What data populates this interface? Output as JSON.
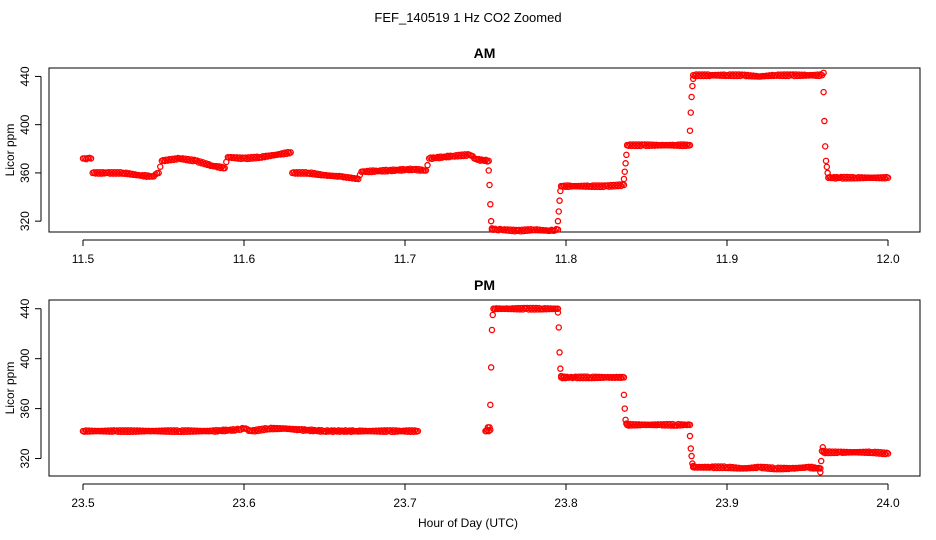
{
  "figure": {
    "title": "FEF_140519  1 Hz CO2 Zoomed",
    "xlabel": "Hour of Day (UTC)"
  },
  "colors": {
    "points": "#ff0000",
    "axes": "#000000",
    "background": "#ffffff"
  },
  "chart_data": [
    {
      "type": "scatter",
      "title": "AM",
      "xlabel": "",
      "ylabel": "Licor ppm",
      "xlim": [
        11.5,
        12.0
      ],
      "ylim": [
        311,
        447
      ],
      "xticks": [
        11.5,
        11.6,
        11.7,
        11.8,
        11.9,
        12.0
      ],
      "xtick_labels": [
        "11.5",
        "11.6",
        "11.7",
        "11.8",
        "11.9",
        "12.0"
      ],
      "yticks": [
        320,
        360,
        400,
        440
      ],
      "ytick_labels": [
        "320",
        "360",
        "400",
        "440"
      ],
      "grid": false,
      "series": [
        {
          "name": "CO2",
          "marker": "open-circle",
          "segments": [
            {
              "x": [
                11.5,
                11.505,
                11.506,
                11.515,
                11.525,
                11.535,
                11.543,
                11.547,
                11.549,
                11.56,
                11.57,
                11.58,
                11.588,
                11.59,
                11.6,
                11.61,
                11.62,
                11.629,
                11.63,
                11.64,
                11.65,
                11.66,
                11.671,
                11.673,
                11.69,
                11.705,
                11.713,
                11.715,
                11.73,
                11.74,
                11.745,
                11.752
              ],
              "y": [
                372,
                372,
                360,
                360,
                360,
                358,
                357,
                360,
                370,
                372,
                370,
                366,
                364,
                373,
                372,
                373,
                375,
                377,
                360,
                360,
                358,
                357,
                355,
                361,
                362,
                363,
                362,
                372,
                374,
                375,
                371,
                370
              ]
            },
            {
              "x": [
                11.752,
                11.7525,
                11.753,
                11.7535,
                11.754
              ],
              "y": [
                362,
                350,
                334,
                320,
                314
              ]
            },
            {
              "x": [
                11.754,
                11.76,
                11.77,
                11.78,
                11.79,
                11.795
              ],
              "y": [
                313,
                313,
                312,
                313,
                312,
                313
              ]
            },
            {
              "x": [
                11.795,
                11.7955,
                11.796,
                11.7965,
                11.797
              ],
              "y": [
                320,
                328,
                337,
                345,
                349
              ]
            },
            {
              "x": [
                11.797,
                11.805,
                11.815,
                11.825,
                11.836
              ],
              "y": [
                349,
                349,
                349,
                349,
                350
              ]
            },
            {
              "x": [
                11.836,
                11.8365,
                11.837,
                11.8375,
                11.838
              ],
              "y": [
                355,
                361,
                368,
                375,
                383
              ]
            },
            {
              "x": [
                11.838,
                11.848,
                11.858,
                11.868,
                11.877
              ],
              "y": [
                383,
                383,
                383,
                383,
                383
              ]
            },
            {
              "x": [
                11.877,
                11.8775,
                11.878,
                11.8785,
                11.879
              ],
              "y": [
                395,
                410,
                423,
                432,
                438
              ]
            },
            {
              "x": [
                11.879,
                11.89,
                11.9,
                11.91,
                11.92,
                11.93,
                11.94,
                11.95,
                11.959,
                11.96
              ],
              "y": [
                441,
                441,
                441,
                441,
                440,
                441,
                441,
                441,
                441,
                443
              ]
            },
            {
              "x": [
                11.96,
                11.9605,
                11.961,
                11.9615,
                11.962,
                11.9625,
                11.963
              ],
              "y": [
                427,
                403,
                382,
                370,
                365,
                360,
                356
              ]
            },
            {
              "x": [
                11.963,
                11.97,
                11.98,
                11.99,
                12.0
              ],
              "y": [
                356,
                356,
                356,
                356,
                356
              ]
            }
          ]
        }
      ]
    },
    {
      "type": "scatter",
      "title": "PM",
      "xlabel": "Hour of Day (UTC)",
      "ylabel": "Licor ppm",
      "xlim": [
        23.5,
        24.0
      ],
      "ylim": [
        306,
        447
      ],
      "xticks": [
        23.5,
        23.6,
        23.7,
        23.8,
        23.9,
        24.0
      ],
      "xtick_labels": [
        "23.5",
        "23.6",
        "23.7",
        "23.8",
        "23.9",
        "24.0"
      ],
      "yticks": [
        320,
        360,
        400,
        440
      ],
      "ytick_labels": [
        "320",
        "360",
        "400",
        "440"
      ],
      "grid": false,
      "series": [
        {
          "name": "CO2",
          "marker": "open-circle",
          "segments": [
            {
              "x": [
                23.5,
                23.52,
                23.54,
                23.56,
                23.58,
                23.595,
                23.6,
                23.605,
                23.615,
                23.625,
                23.635,
                23.65,
                23.67,
                23.69,
                23.708
              ],
              "y": [
                342,
                342,
                342,
                342,
                342,
                343,
                344,
                342,
                344,
                344,
                343,
                342,
                342,
                342,
                342
              ]
            },
            {
              "x": [
                23.75,
                23.7505,
                23.751,
                23.7515,
                23.752,
                23.7525,
                23.753
              ],
              "y": [
                342,
                342,
                343,
                345,
                342,
                345,
                343
              ]
            },
            {
              "x": [
                23.753,
                23.7535,
                23.754,
                23.7545,
                23.755
              ],
              "y": [
                363,
                393,
                423,
                435,
                440
              ]
            },
            {
              "x": [
                23.755,
                23.765,
                23.775,
                23.785,
                23.795
              ],
              "y": [
                440,
                440,
                440,
                440,
                440
              ]
            },
            {
              "x": [
                23.795,
                23.7955,
                23.796,
                23.7965,
                23.797
              ],
              "y": [
                437,
                425,
                405,
                392,
                386
              ]
            },
            {
              "x": [
                23.797,
                23.805,
                23.815,
                23.825,
                23.836
              ],
              "y": [
                385,
                385,
                385,
                385,
                385
              ]
            },
            {
              "x": [
                23.836,
                23.8365,
                23.837,
                23.8375,
                23.838
              ],
              "y": [
                371,
                360,
                351,
                348,
                347
              ]
            },
            {
              "x": [
                23.838,
                23.848,
                23.858,
                23.868,
                23.877
              ],
              "y": [
                347,
                347,
                347,
                347,
                347
              ]
            },
            {
              "x": [
                23.877,
                23.8775,
                23.878,
                23.8785,
                23.879
              ],
              "y": [
                338,
                328,
                322,
                316,
                314
              ]
            },
            {
              "x": [
                23.879,
                23.89,
                23.9,
                23.91,
                23.92,
                23.93,
                23.94,
                23.95,
                23.958
              ],
              "y": [
                313,
                313,
                313,
                312,
                313,
                312,
                312,
                313,
                312
              ]
            },
            {
              "x": [
                23.958,
                23.9585,
                23.959,
                23.9595,
                23.96
              ],
              "y": [
                309,
                318,
                326,
                329,
                326
              ]
            },
            {
              "x": [
                23.96,
                23.97,
                23.98,
                23.99,
                24.0
              ],
              "y": [
                325,
                325,
                325,
                325,
                324
              ]
            }
          ]
        }
      ]
    }
  ]
}
